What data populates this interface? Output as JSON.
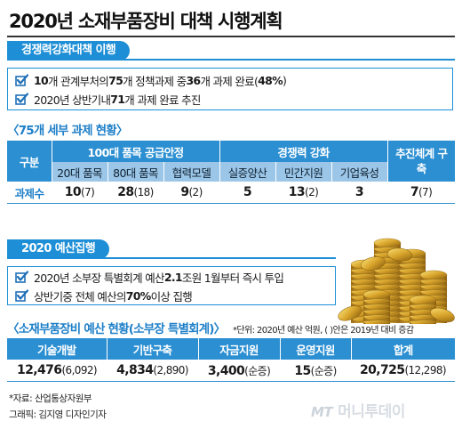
{
  "title": "2020년 소재부품장비 대책 시행계획",
  "section1": {
    "label": "경쟁력강화대책 이행",
    "bullets": [
      {
        "parts": [
          {
            "t": "10",
            "b": true
          },
          {
            "t": "개 관계부처의 ",
            "b": false
          },
          {
            "t": "75",
            "b": true
          },
          {
            "t": "개 정책과제 중 ",
            "b": false
          },
          {
            "t": "36",
            "b": true
          },
          {
            "t": "개 과제 완료(",
            "b": false
          },
          {
            "t": "48%",
            "b": true
          },
          {
            "t": ")",
            "b": false
          }
        ]
      },
      {
        "parts": [
          {
            "t": "2020년 상반기내 ",
            "b": false
          },
          {
            "t": "71",
            "b": true
          },
          {
            "t": "개 과제 완료 추진",
            "b": false
          }
        ]
      }
    ]
  },
  "table1": {
    "heading": "〈75개 세부 과제 현황〉",
    "col_label": "구분",
    "groups": [
      "100대 품목 공급안정",
      "경쟁력 강화",
      "추진체계 구축"
    ],
    "subheads": [
      "20대 품목",
      "80대 품목",
      "협력모델",
      "실증양산",
      "민간지원",
      "기업육성"
    ],
    "row_label": "과제수",
    "cells": [
      {
        "main": "10",
        "paren": "(7)"
      },
      {
        "main": "28",
        "paren": "(18)"
      },
      {
        "main": "9",
        "paren": "(2)"
      },
      {
        "main": "5",
        "paren": ""
      },
      {
        "main": "13",
        "paren": "(2)"
      },
      {
        "main": "3",
        "paren": ""
      },
      {
        "main": "7",
        "paren": "(7)"
      }
    ]
  },
  "section2": {
    "label": "2020 예산집행",
    "bullets": [
      {
        "parts": [
          {
            "t": "2020년 소부장 특별회계 예산 ",
            "b": false
          },
          {
            "t": "2.1",
            "b": true
          },
          {
            "t": "조원 1월부터 즉시 투입",
            "b": false
          }
        ]
      },
      {
        "parts": [
          {
            "t": "상반기중 전체 예산의 ",
            "b": false
          },
          {
            "t": "70%",
            "b": true
          },
          {
            "t": " 이상 집행",
            "b": false
          }
        ]
      }
    ]
  },
  "table2": {
    "heading": "〈소재부품장비 예산 현황(소부장 특별회계)〉",
    "unit_note": "*단위: 2020년 예산 억원, ( )안은 2019년 대비 증감",
    "headers": [
      "기술개발",
      "기반구축",
      "자금지원",
      "운영지원",
      "합계"
    ],
    "cells": [
      {
        "main": "12,476",
        "paren": "(6,092)"
      },
      {
        "main": "4,834",
        "paren": "(2,890)"
      },
      {
        "main": "3,400",
        "paren": "(순증)"
      },
      {
        "main": "15",
        "paren": "(순증)"
      },
      {
        "main": "20,725",
        "paren": "(12,298)"
      }
    ]
  },
  "source": "*자료: 산업통상자원부",
  "credit": "그래픽: 김지영 디자인기자",
  "logo": {
    "mt": "MT",
    "name": "머니투데이"
  },
  "colors": {
    "accent": "#1e8fd6",
    "header": "#2b8fd2",
    "subheader": "#9bc6e8",
    "coins": "#d4a62a"
  },
  "icons": [
    "checkbox-icon",
    "gold-coins-icon"
  ]
}
